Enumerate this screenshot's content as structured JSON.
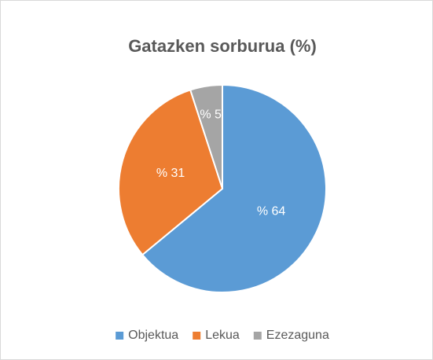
{
  "chart_data": {
    "type": "pie",
    "title": "Gatazken sorburua (%)",
    "categories": [
      "Objektua",
      "Lekua",
      "Ezezaguna"
    ],
    "values": [
      64,
      31,
      5
    ],
    "value_labels": [
      "% 64",
      "% 31",
      "% 5"
    ],
    "colors": [
      "#5b9bd5",
      "#ed7d31",
      "#a5a5a5"
    ],
    "legend": "bottom"
  }
}
